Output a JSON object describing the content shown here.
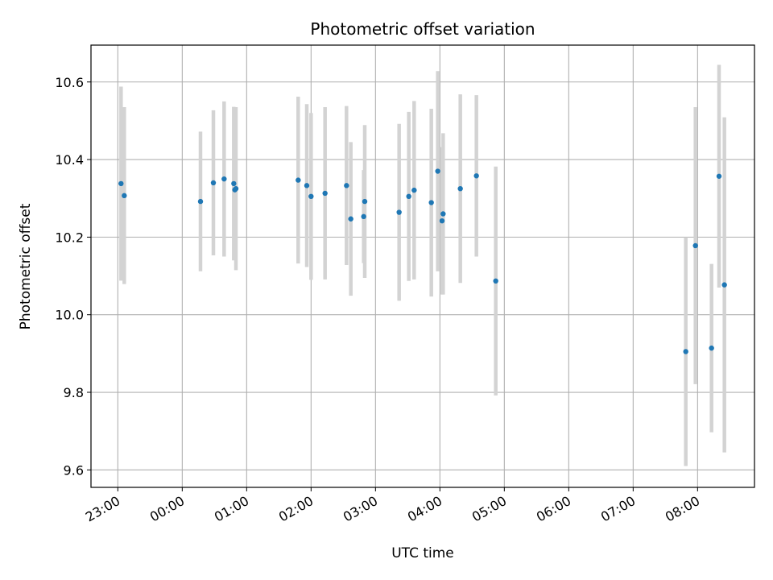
{
  "chart_data": {
    "type": "scatter",
    "title": "Photometric offset variation",
    "xlabel": "UTC time",
    "ylabel": "Photometric offset",
    "grid": true,
    "x_tick_labels": [
      "23:00",
      "00:00",
      "01:00",
      "02:00",
      "03:00",
      "04:00",
      "05:00",
      "06:00",
      "07:00",
      "08:00"
    ],
    "y_tick_labels": [
      "9.6",
      "9.8",
      "10.0",
      "10.2",
      "10.4",
      "10.6"
    ],
    "y_ticks": [
      9.6,
      9.8,
      10.0,
      10.2,
      10.4,
      10.6
    ],
    "ylim": [
      9.555,
      10.695
    ],
    "xlim": [
      "22:35",
      "08:53"
    ],
    "point_color": "#1f77b4",
    "errorbar_color": "#d3d3d3",
    "points": [
      {
        "x": "23:03",
        "y": 10.338,
        "yerr": 0.25
      },
      {
        "x": "23:06",
        "y": 10.307,
        "yerr": 0.228
      },
      {
        "x": "00:17",
        "y": 10.292,
        "yerr": 0.18
      },
      {
        "x": "00:29",
        "y": 10.34,
        "yerr": 0.187
      },
      {
        "x": "00:39",
        "y": 10.35,
        "yerr": 0.2
      },
      {
        "x": "00:48",
        "y": 10.338,
        "yerr": 0.198
      },
      {
        "x": "00:49",
        "y": 10.322,
        "yerr": 0.18
      },
      {
        "x": "00:50",
        "y": 10.325,
        "yerr": 0.21
      },
      {
        "x": "01:48",
        "y": 10.347,
        "yerr": 0.215
      },
      {
        "x": "01:56",
        "y": 10.333,
        "yerr": 0.21
      },
      {
        "x": "02:00",
        "y": 10.305,
        "yerr": 0.215
      },
      {
        "x": "02:13",
        "y": 10.313,
        "yerr": 0.222
      },
      {
        "x": "02:33",
        "y": 10.333,
        "yerr": 0.205
      },
      {
        "x": "02:37",
        "y": 10.247,
        "yerr": 0.198
      },
      {
        "x": "02:49",
        "y": 10.253,
        "yerr": 0.12
      },
      {
        "x": "02:50",
        "y": 10.292,
        "yerr": 0.197
      },
      {
        "x": "03:22",
        "y": 10.264,
        "yerr": 0.228
      },
      {
        "x": "03:31",
        "y": 10.305,
        "yerr": 0.218
      },
      {
        "x": "03:36",
        "y": 10.321,
        "yerr": 0.23
      },
      {
        "x": "03:52",
        "y": 10.289,
        "yerr": 0.242
      },
      {
        "x": "03:58",
        "y": 10.37,
        "yerr": 0.258
      },
      {
        "x": "04:02",
        "y": 10.242,
        "yerr": 0.19
      },
      {
        "x": "04:03",
        "y": 10.26,
        "yerr": 0.208
      },
      {
        "x": "04:19",
        "y": 10.325,
        "yerr": 0.243
      },
      {
        "x": "04:34",
        "y": 10.358,
        "yerr": 0.208
      },
      {
        "x": "04:52",
        "y": 10.087,
        "yerr": 0.295
      },
      {
        "x": "07:49",
        "y": 9.905,
        "yerr": 0.295
      },
      {
        "x": "07:58",
        "y": 10.178,
        "yerr": 0.357
      },
      {
        "x": "08:13",
        "y": 9.914,
        "yerr": 0.217
      },
      {
        "x": "08:20",
        "y": 10.357,
        "yerr": 0.287
      },
      {
        "x": "08:25",
        "y": 10.077,
        "yerr": 0.432
      }
    ]
  }
}
